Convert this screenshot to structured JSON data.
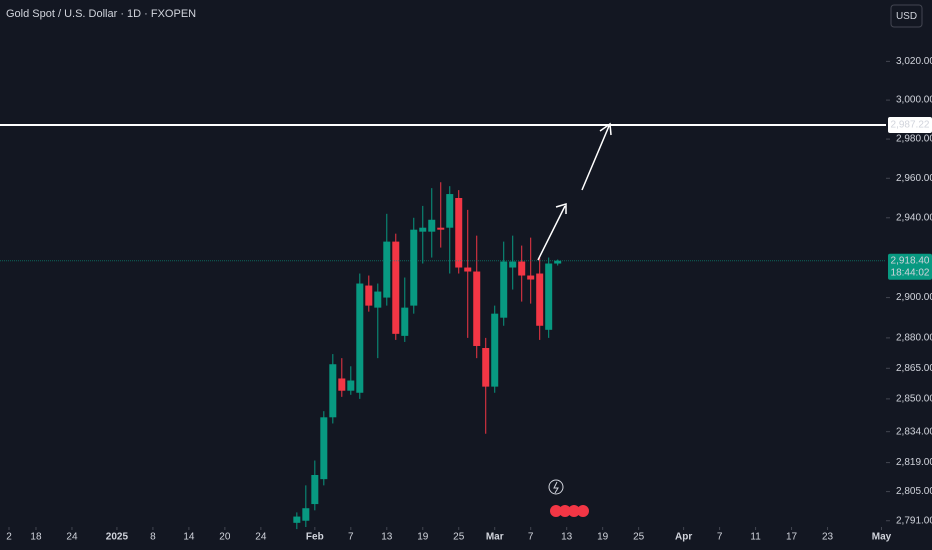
{
  "chart_data": {
    "type": "candlestick",
    "title": "Gold Spot / U.S. Dollar · 1D · FXOPEN",
    "currency": "USD",
    "log_scale": true,
    "up_color": "#089981",
    "down_color": "#f23645",
    "open": [
      2790,
      2791,
      2799,
      2811,
      2841,
      2860,
      2854,
      2853,
      2906,
      2895,
      2900,
      2928,
      2881,
      2896,
      2933,
      2933,
      2935,
      2935,
      2950,
      2915,
      2913,
      2875,
      2856,
      2890,
      2915,
      2918,
      2911,
      2912,
      2884,
      2917
    ],
    "high": [
      2795,
      2808,
      2820,
      2844,
      2872,
      2870,
      2866,
      2912,
      2911,
      2907,
      2942,
      2932,
      2910,
      2940,
      2946,
      2955,
      2958,
      2956,
      2954,
      2944,
      2931,
      2880,
      2896,
      2928,
      2931,
      2926,
      2930,
      2920,
      2920,
      2919
    ],
    "low": [
      2787,
      2788,
      2796,
      2808,
      2838,
      2851,
      2852,
      2850,
      2893,
      2870,
      2896,
      2879,
      2878,
      2892,
      2917,
      2920,
      2925,
      2912,
      2912,
      2880,
      2870,
      2833,
      2853,
      2886,
      2904,
      2898,
      2897,
      2879,
      2880,
      2916
    ],
    "close": [
      2793,
      2797,
      2813,
      2841,
      2867,
      2854,
      2859,
      2907,
      2896,
      2903,
      2928,
      2882,
      2895,
      2934,
      2935,
      2939,
      2934,
      2952,
      2915,
      2913,
      2876,
      2856,
      2892,
      2918,
      2918,
      2911,
      2909,
      2886,
      2917,
      2918.4
    ],
    "last_label": "2,918.40",
    "countdown": "18:44:02",
    "last_color": "#089981",
    "hline": {
      "value": 2987.22,
      "label": "2,987.22",
      "color": "#ffffff"
    },
    "ylim": [
      2788,
      3052
    ],
    "yticks": [
      {
        "value": 3020,
        "label": "3,020.00"
      },
      {
        "value": 3000,
        "label": "3,000.00"
      },
      {
        "value": 2980,
        "label": "2,980.00"
      },
      {
        "value": 2960,
        "label": "2,960.00"
      },
      {
        "value": 2940,
        "label": "2,940.00"
      },
      {
        "value": 2900,
        "label": "2,900.00"
      },
      {
        "value": 2880,
        "label": "2,880.00"
      },
      {
        "value": 2865,
        "label": "2,865.00"
      },
      {
        "value": 2850,
        "label": "2,850.00"
      },
      {
        "value": 2834,
        "label": "2,834.00"
      },
      {
        "value": 2819,
        "label": "2,819.00"
      },
      {
        "value": 2805,
        "label": "2,805.00"
      },
      {
        "value": 2791,
        "label": "2,791.00"
      }
    ],
    "xlim": [
      -33,
      65.5
    ],
    "xticks": [
      {
        "value": -32,
        "label": "2"
      },
      {
        "value": -29,
        "label": "18"
      },
      {
        "value": -25,
        "label": "24"
      },
      {
        "value": -20,
        "label": "2025"
      },
      {
        "value": -16,
        "label": "8"
      },
      {
        "value": -12,
        "label": "14"
      },
      {
        "value": -8,
        "label": "20"
      },
      {
        "value": -4,
        "label": "24"
      },
      {
        "value": 2,
        "label": "Feb"
      },
      {
        "value": 6,
        "label": "7"
      },
      {
        "value": 10,
        "label": "13"
      },
      {
        "value": 14,
        "label": "19"
      },
      {
        "value": 18,
        "label": "25"
      },
      {
        "value": 22,
        "label": "Mar"
      },
      {
        "value": 26,
        "label": "7"
      },
      {
        "value": 30,
        "label": "13"
      },
      {
        "value": 34,
        "label": "19"
      },
      {
        "value": 38,
        "label": "25"
      },
      {
        "value": 43,
        "label": "Apr"
      },
      {
        "value": 47,
        "label": "7"
      },
      {
        "value": 51,
        "label": "11"
      },
      {
        "value": 55,
        "label": "17"
      },
      {
        "value": 59,
        "label": "23"
      },
      {
        "value": 65,
        "label": "May"
      }
    ]
  }
}
